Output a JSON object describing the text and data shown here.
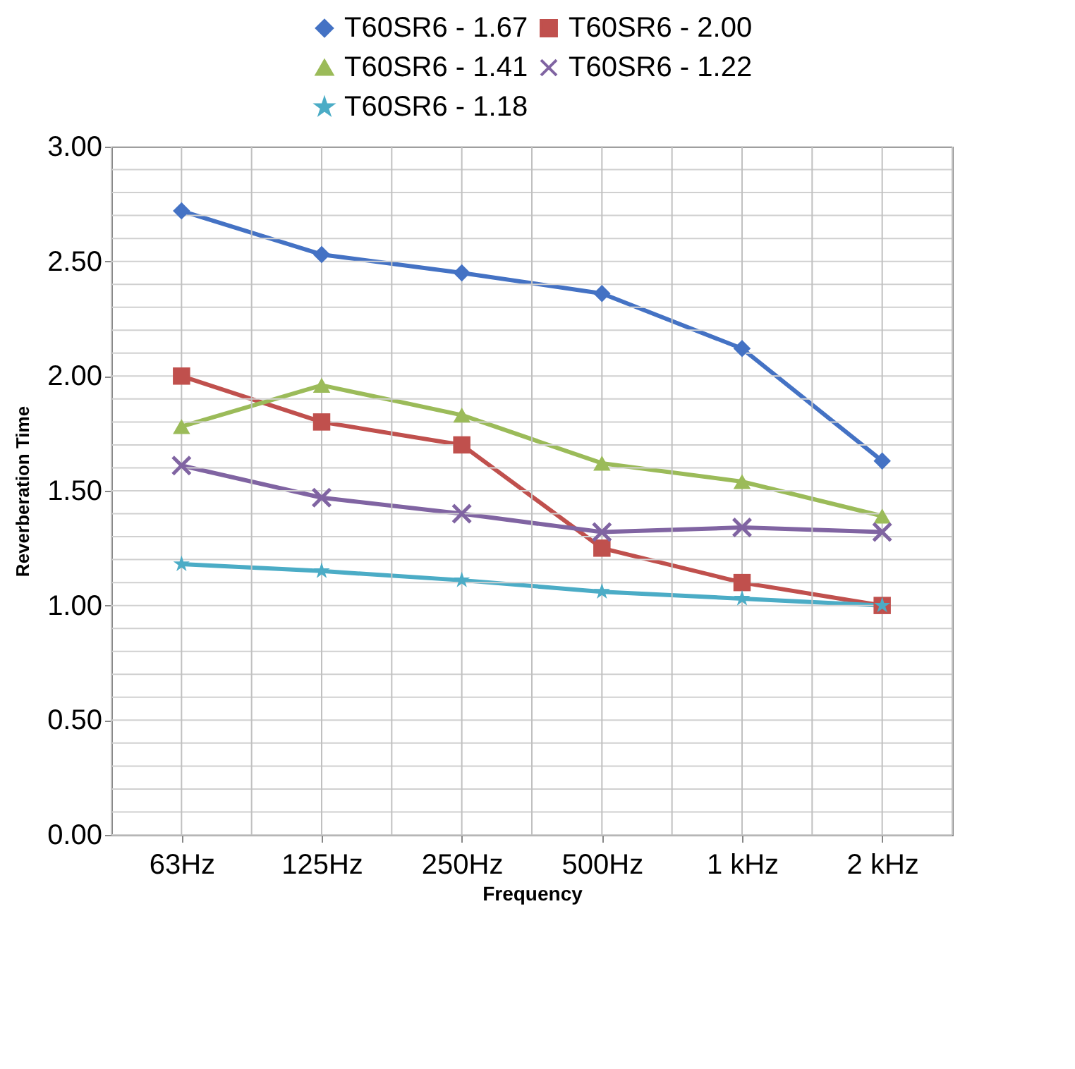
{
  "chart_data": {
    "type": "line",
    "xlabel": "Frequency",
    "ylabel": "Reverberation Time",
    "categories": [
      "63Hz",
      "125Hz",
      "250Hz",
      "500Hz",
      "1 kHz",
      "2 kHz"
    ],
    "series": [
      {
        "name": "T60SR6 - 1.67",
        "color": "#4472c4",
        "marker": "diamond",
        "values": [
          2.72,
          2.53,
          2.45,
          2.36,
          2.12,
          1.63
        ]
      },
      {
        "name": "T60SR6 - 2.00",
        "color": "#c0504d",
        "marker": "square",
        "values": [
          2.0,
          1.8,
          1.7,
          1.25,
          1.1,
          1.0
        ]
      },
      {
        "name": "T60SR6 - 1.41",
        "color": "#9bbb59",
        "marker": "triangle",
        "values": [
          1.78,
          1.96,
          1.83,
          1.62,
          1.54,
          1.39
        ]
      },
      {
        "name": "T60SR6 - 1.22",
        "color": "#8064a2",
        "marker": "cross",
        "values": [
          1.61,
          1.47,
          1.4,
          1.32,
          1.34,
          1.32
        ]
      },
      {
        "name": "T60SR6 - 1.18",
        "color": "#4bacc6",
        "marker": "star",
        "values": [
          1.18,
          1.15,
          1.11,
          1.06,
          1.03,
          1.0
        ]
      }
    ],
    "ylim": [
      0,
      3
    ],
    "yticks": [
      {
        "value": 0,
        "label": "0.00"
      },
      {
        "value": 0.5,
        "label": "0.50"
      },
      {
        "value": 1,
        "label": "1.00"
      },
      {
        "value": 1.5,
        "label": "1.50"
      },
      {
        "value": 2,
        "label": "2.00"
      },
      {
        "value": 2.5,
        "label": "2.50"
      },
      {
        "value": 3,
        "label": "3.00"
      }
    ],
    "grid": true,
    "legend": "top",
    "line_style": "solid"
  }
}
